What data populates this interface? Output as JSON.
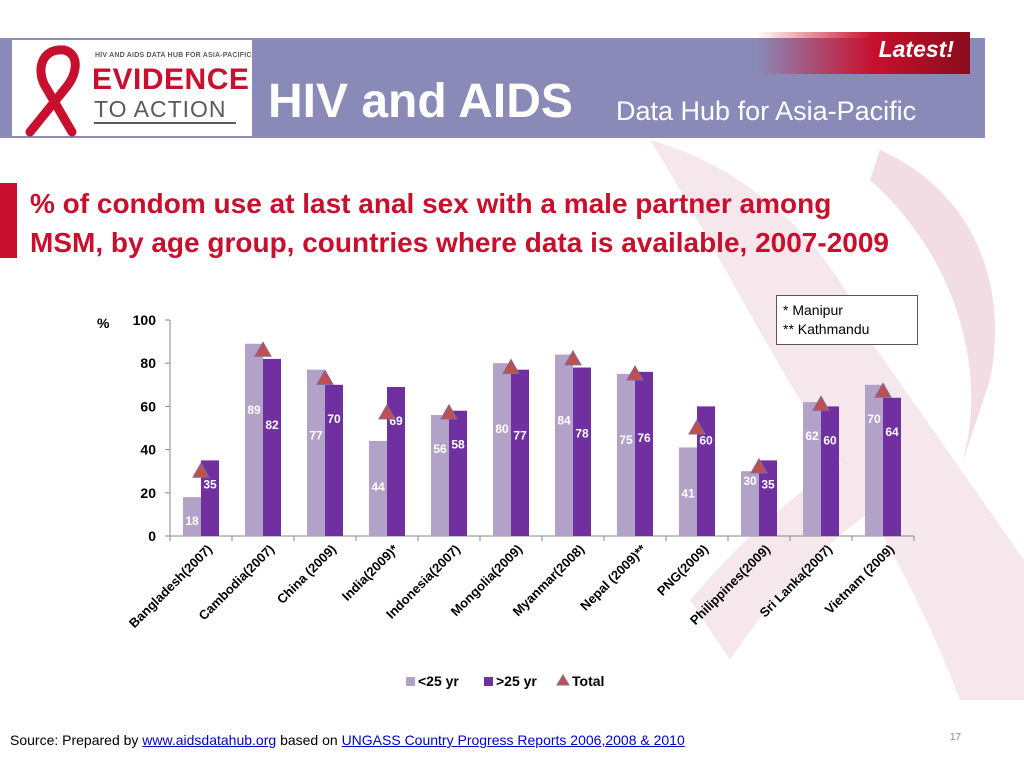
{
  "header": {
    "logo_small": "HIV AND AIDS DATA HUB FOR ASIA-PACIFIC",
    "logo_evidence": "EVIDENCE",
    "logo_action": "TO ACTION",
    "title_main": "HIV and AIDS",
    "title_sub": "Data Hub for Asia-Pacific",
    "latest": "Latest!"
  },
  "heading": "% of condom use at last anal sex with a male partner among MSM, by age group, countries where data is available, 2007-2009",
  "notes": [
    "* Manipur",
    "** Kathmandu"
  ],
  "footer": {
    "prefix": "Source: Prepared by ",
    "link1": "www.aidsdatahub.org",
    "middle": " based on ",
    "link2": "UNGASS Country Progress Reports  2006,2008 & 2010"
  },
  "page_number": "17",
  "colors": {
    "header": "#8a8ab9",
    "accent_red": "#c8102e",
    "under25": "#b3a2c7",
    "over25": "#7030a0",
    "total": "#c0504d"
  },
  "chart_data": {
    "type": "bar",
    "ylabel": "%",
    "ylim": [
      0,
      100
    ],
    "yticks": [
      "0",
      "20",
      "40",
      "60",
      "80",
      "100"
    ],
    "categories": [
      "Bangladesh(2007)",
      "Cambodia(2007)",
      "China (2009)",
      "India(2009)*",
      "Indonesia(2007)",
      "Mongolia(2009)",
      "Myanmar(2008)",
      "Nepal (2009)**",
      "PNG(2009)",
      "Philippines(2009)",
      "Sri Lanka(2007)",
      "Vietnam (2009)"
    ],
    "series": [
      {
        "name": "<25 yr",
        "type": "bar",
        "values": [
          18,
          89,
          77,
          44,
          56,
          80,
          84,
          75,
          41,
          30,
          62,
          70
        ],
        "labels": [
          "18",
          "89",
          "77",
          "44",
          "56",
          "80",
          "84",
          "75",
          "41",
          "30",
          "62",
          "70"
        ]
      },
      {
        "name": ">25 yr",
        "type": "bar",
        "values": [
          35,
          82,
          70,
          69,
          58,
          77,
          78,
          76,
          60,
          35,
          60,
          64
        ],
        "labels": [
          "35",
          "82",
          "70",
          "69",
          "58",
          "77",
          "78",
          "76",
          "60",
          "35",
          "60",
          "64"
        ]
      },
      {
        "name": "Total",
        "type": "marker",
        "values": [
          30,
          86,
          73,
          57,
          57,
          78,
          82,
          75,
          50,
          32,
          61,
          67
        ]
      }
    ],
    "legend_position": "bottom"
  }
}
